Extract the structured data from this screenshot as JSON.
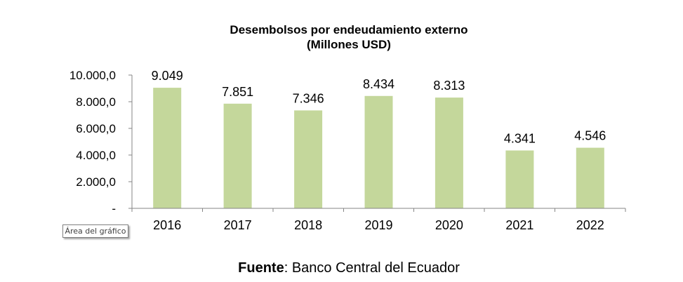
{
  "chart_data": {
    "type": "bar",
    "title": "Desembolsos por endeudamiento externo",
    "subtitle": "(Millones USD)",
    "categories": [
      "2016",
      "2017",
      "2018",
      "2019",
      "2020",
      "2021",
      "2022"
    ],
    "values": [
      9049,
      7851,
      7346,
      8434,
      8313,
      4341,
      4546
    ],
    "data_labels": [
      "9.049",
      "7.851",
      "7.346",
      "8.434",
      "8.313",
      "4.341",
      "4.546"
    ],
    "ylim": [
      0,
      10000
    ],
    "y_ticks": [
      0,
      2000,
      4000,
      6000,
      8000,
      10000
    ],
    "y_tick_labels": [
      "-",
      "2.000,0",
      "4.000,0",
      "6.000,0",
      "8.000,0",
      "10.000,0"
    ],
    "xlabel": "",
    "ylabel": "",
    "grid": false,
    "bar_color": "#c4d79b",
    "axis_color": "#868686"
  },
  "tooltip": {
    "text": "Área del gráfico"
  },
  "source": {
    "label": "Fuente",
    "text": ": Banco Central del Ecuador"
  }
}
